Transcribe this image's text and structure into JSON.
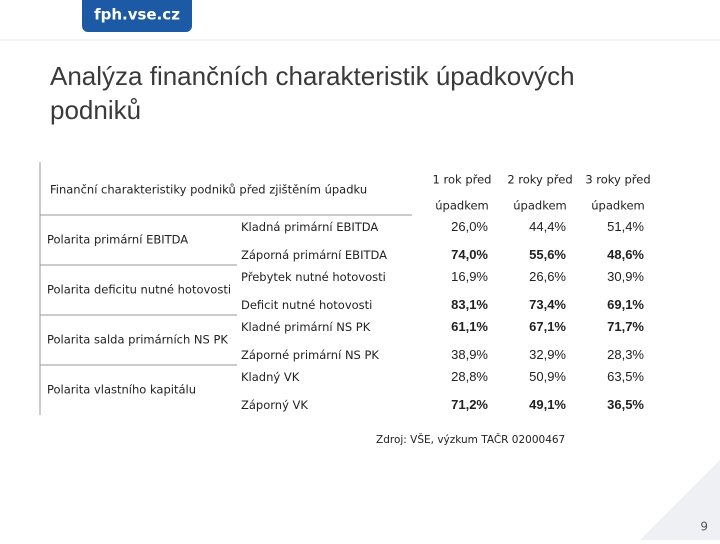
{
  "logo": "fph.vse.cz",
  "title": "Analýza finančních charakteristik úpadkových podniků",
  "table": {
    "header": "Finanční charakteristiky podniků před zjištěním úpadku",
    "columns": [
      [
        "1 rok před",
        "úpadkem"
      ],
      [
        "2 roky před",
        "úpadkem"
      ],
      [
        "3 roky před",
        "úpadkem"
      ]
    ],
    "groups": [
      {
        "label": "Polarita primární EBITDA",
        "rows": [
          {
            "label": "Kladná primární EBITDA",
            "values": [
              "26,0%",
              "44,4%",
              "51,4%"
            ]
          },
          {
            "label": "Záporná primární EBITDA",
            "values": [
              "74,0%",
              "55,6%",
              "48,6%"
            ],
            "bold": true
          }
        ]
      },
      {
        "label": "Polarita deficitu nutné hotovosti",
        "rows": [
          {
            "label": "Přebytek nutné hotovosti",
            "values": [
              "16,9%",
              "26,6%",
              "30,9%"
            ]
          },
          {
            "label": "Deficit nutné hotovosti",
            "values": [
              "83,1%",
              "73,4%",
              "69,1%"
            ],
            "bold": true
          }
        ]
      },
      {
        "label": "Polarita salda primárních NS PK",
        "rows": [
          {
            "label": "Kladné primární NS PK",
            "values": [
              "61,1%",
              "67,1%",
              "71,7%"
            ],
            "bold": true
          },
          {
            "label": "Záporné primární NS PK",
            "values": [
              "38,9%",
              "32,9%",
              "28,3%"
            ]
          }
        ]
      },
      {
        "label": "Polarita vlastního kapitálu",
        "rows": [
          {
            "label": "Kladný VK",
            "values": [
              "28,8%",
              "50,9%",
              "63,5%"
            ]
          },
          {
            "label": "Záporný VK",
            "values": [
              "71,2%",
              "49,1%",
              "36,5%"
            ],
            "bold": true
          }
        ]
      }
    ]
  },
  "source": "Zdroj: VŠE, výzkum TAČR 02000467",
  "page": "9"
}
